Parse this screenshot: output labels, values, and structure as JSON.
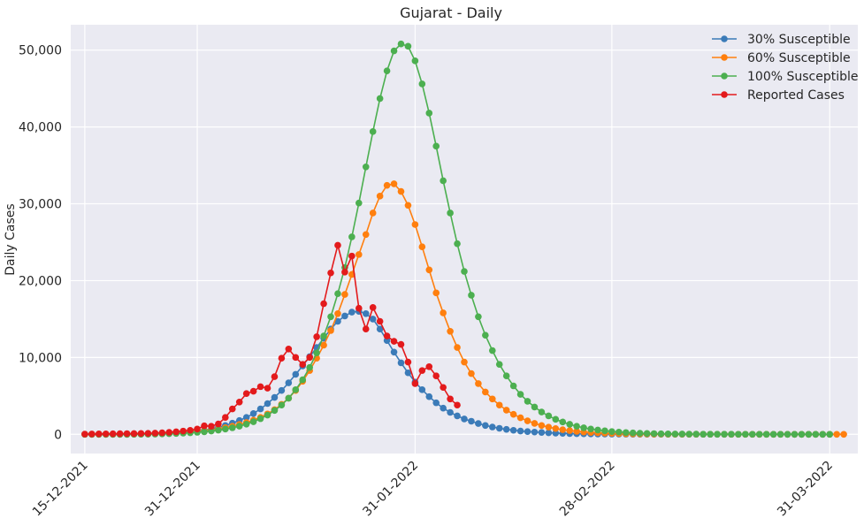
{
  "chart_data": {
    "type": "line",
    "title": "Gujarat - Daily",
    "xlabel": "",
    "ylabel": "Daily Cases",
    "x_start": "2021-12-15",
    "x_end": "2022-03-31",
    "xlim": [
      "2021-12-13",
      "2022-04-04"
    ],
    "ylim": [
      -2500,
      53300
    ],
    "grid": true,
    "legend_position": "top-right",
    "x_ticks": [
      {
        "date": "2021-12-15",
        "label": "15-12-2021"
      },
      {
        "date": "2021-12-31",
        "label": "31-12-2021"
      },
      {
        "date": "2022-01-31",
        "label": "31-01-2022"
      },
      {
        "date": "2022-02-28",
        "label": "28-02-2022"
      },
      {
        "date": "2022-03-31",
        "label": "31-03-2022"
      }
    ],
    "y_ticks": [
      {
        "value": 0,
        "label": "0"
      },
      {
        "value": 10000,
        "label": "10,000"
      },
      {
        "value": 20000,
        "label": "20,000"
      },
      {
        "value": 30000,
        "label": "30,000"
      },
      {
        "value": 40000,
        "label": "40,000"
      },
      {
        "value": 50000,
        "label": "50,000"
      }
    ],
    "series": [
      {
        "name": "30% Susceptible",
        "color": "#3b7bb8",
        "values": [
          0,
          0,
          0,
          0,
          0,
          0,
          0,
          10,
          20,
          40,
          60,
          90,
          120,
          160,
          220,
          300,
          400,
          520,
          700,
          900,
          1150,
          1450,
          1800,
          2200,
          2700,
          3300,
          4000,
          4800,
          5700,
          6700,
          7800,
          8900,
          10100,
          11300,
          12500,
          13700,
          14700,
          15400,
          15900,
          16000,
          15700,
          15000,
          13700,
          12200,
          10700,
          9300,
          8000,
          6800,
          5800,
          4900,
          4100,
          3400,
          2850,
          2400,
          2000,
          1700,
          1400,
          1150,
          950,
          780,
          640,
          520,
          430,
          350,
          290,
          240,
          190,
          155,
          125,
          100,
          80,
          65,
          50,
          40,
          32,
          26,
          20,
          16,
          12,
          10,
          8,
          6,
          5,
          4,
          3,
          2,
          2,
          1,
          1,
          1,
          0,
          0,
          0,
          0,
          0,
          0,
          0,
          0,
          0,
          0,
          0,
          0,
          0,
          0,
          0,
          0,
          0
        ]
      },
      {
        "name": "60% Susceptible",
        "color": "#ff7f0e",
        "values": [
          0,
          0,
          0,
          0,
          0,
          0,
          0,
          10,
          20,
          30,
          50,
          80,
          110,
          150,
          200,
          260,
          340,
          440,
          560,
          700,
          860,
          1050,
          1270,
          1530,
          1840,
          2200,
          2650,
          3200,
          3900,
          4700,
          5700,
          6900,
          8300,
          9900,
          11600,
          13500,
          15700,
          18200,
          20800,
          23400,
          26000,
          28800,
          31000,
          32400,
          32600,
          31600,
          29800,
          27300,
          24400,
          21400,
          18400,
          15800,
          13400,
          11300,
          9400,
          7900,
          6600,
          5500,
          4600,
          3800,
          3150,
          2600,
          2150,
          1750,
          1420,
          1150,
          930,
          750,
          600,
          480,
          380,
          300,
          240,
          190,
          150,
          120,
          90,
          70,
          55,
          45,
          35,
          27,
          20,
          16,
          12,
          9,
          7,
          5,
          4,
          3,
          2,
          2,
          1,
          1,
          1,
          1,
          0,
          0,
          0,
          0,
          0,
          0,
          0,
          0,
          0,
          0,
          0,
          0,
          0
        ]
      },
      {
        "name": "100% Susceptible",
        "color": "#4caf50",
        "values": [
          0,
          0,
          0,
          0,
          0,
          0,
          0,
          5,
          10,
          20,
          30,
          50,
          80,
          110,
          150,
          200,
          260,
          330,
          420,
          540,
          680,
          850,
          1060,
          1320,
          1640,
          2030,
          2500,
          3100,
          3800,
          4700,
          5800,
          7100,
          8700,
          10600,
          12800,
          15300,
          18300,
          21700,
          25700,
          30100,
          34800,
          39400,
          43700,
          47300,
          49900,
          50800,
          50500,
          48600,
          45600,
          41800,
          37500,
          33000,
          28800,
          24800,
          21200,
          18100,
          15300,
          12900,
          10900,
          9100,
          7600,
          6300,
          5200,
          4300,
          3550,
          2900,
          2400,
          1950,
          1600,
          1300,
          1050,
          850,
          690,
          560,
          450,
          360,
          290,
          230,
          180,
          140,
          110,
          90,
          70,
          55,
          42,
          33,
          26,
          20,
          15,
          12,
          9,
          7,
          5,
          4,
          3,
          2,
          2,
          1,
          1,
          1,
          0,
          0,
          0,
          0,
          0,
          0,
          0
        ]
      },
      {
        "name": "Reported Cases",
        "color": "#e31a1c",
        "values": [
          30,
          40,
          50,
          60,
          70,
          80,
          90,
          100,
          110,
          130,
          160,
          200,
          260,
          330,
          420,
          520,
          680,
          1100,
          1050,
          1350,
          2200,
          3300,
          4200,
          5300,
          5600,
          6200,
          6000,
          7500,
          9900,
          11100,
          10000,
          9100,
          10000,
          12700,
          17000,
          21000,
          24600,
          21100,
          23200,
          16400,
          13700,
          16500,
          14700,
          12800,
          12100,
          11700,
          9400,
          6600,
          8300,
          8800,
          7600,
          6100,
          4600,
          3800
        ]
      }
    ]
  }
}
